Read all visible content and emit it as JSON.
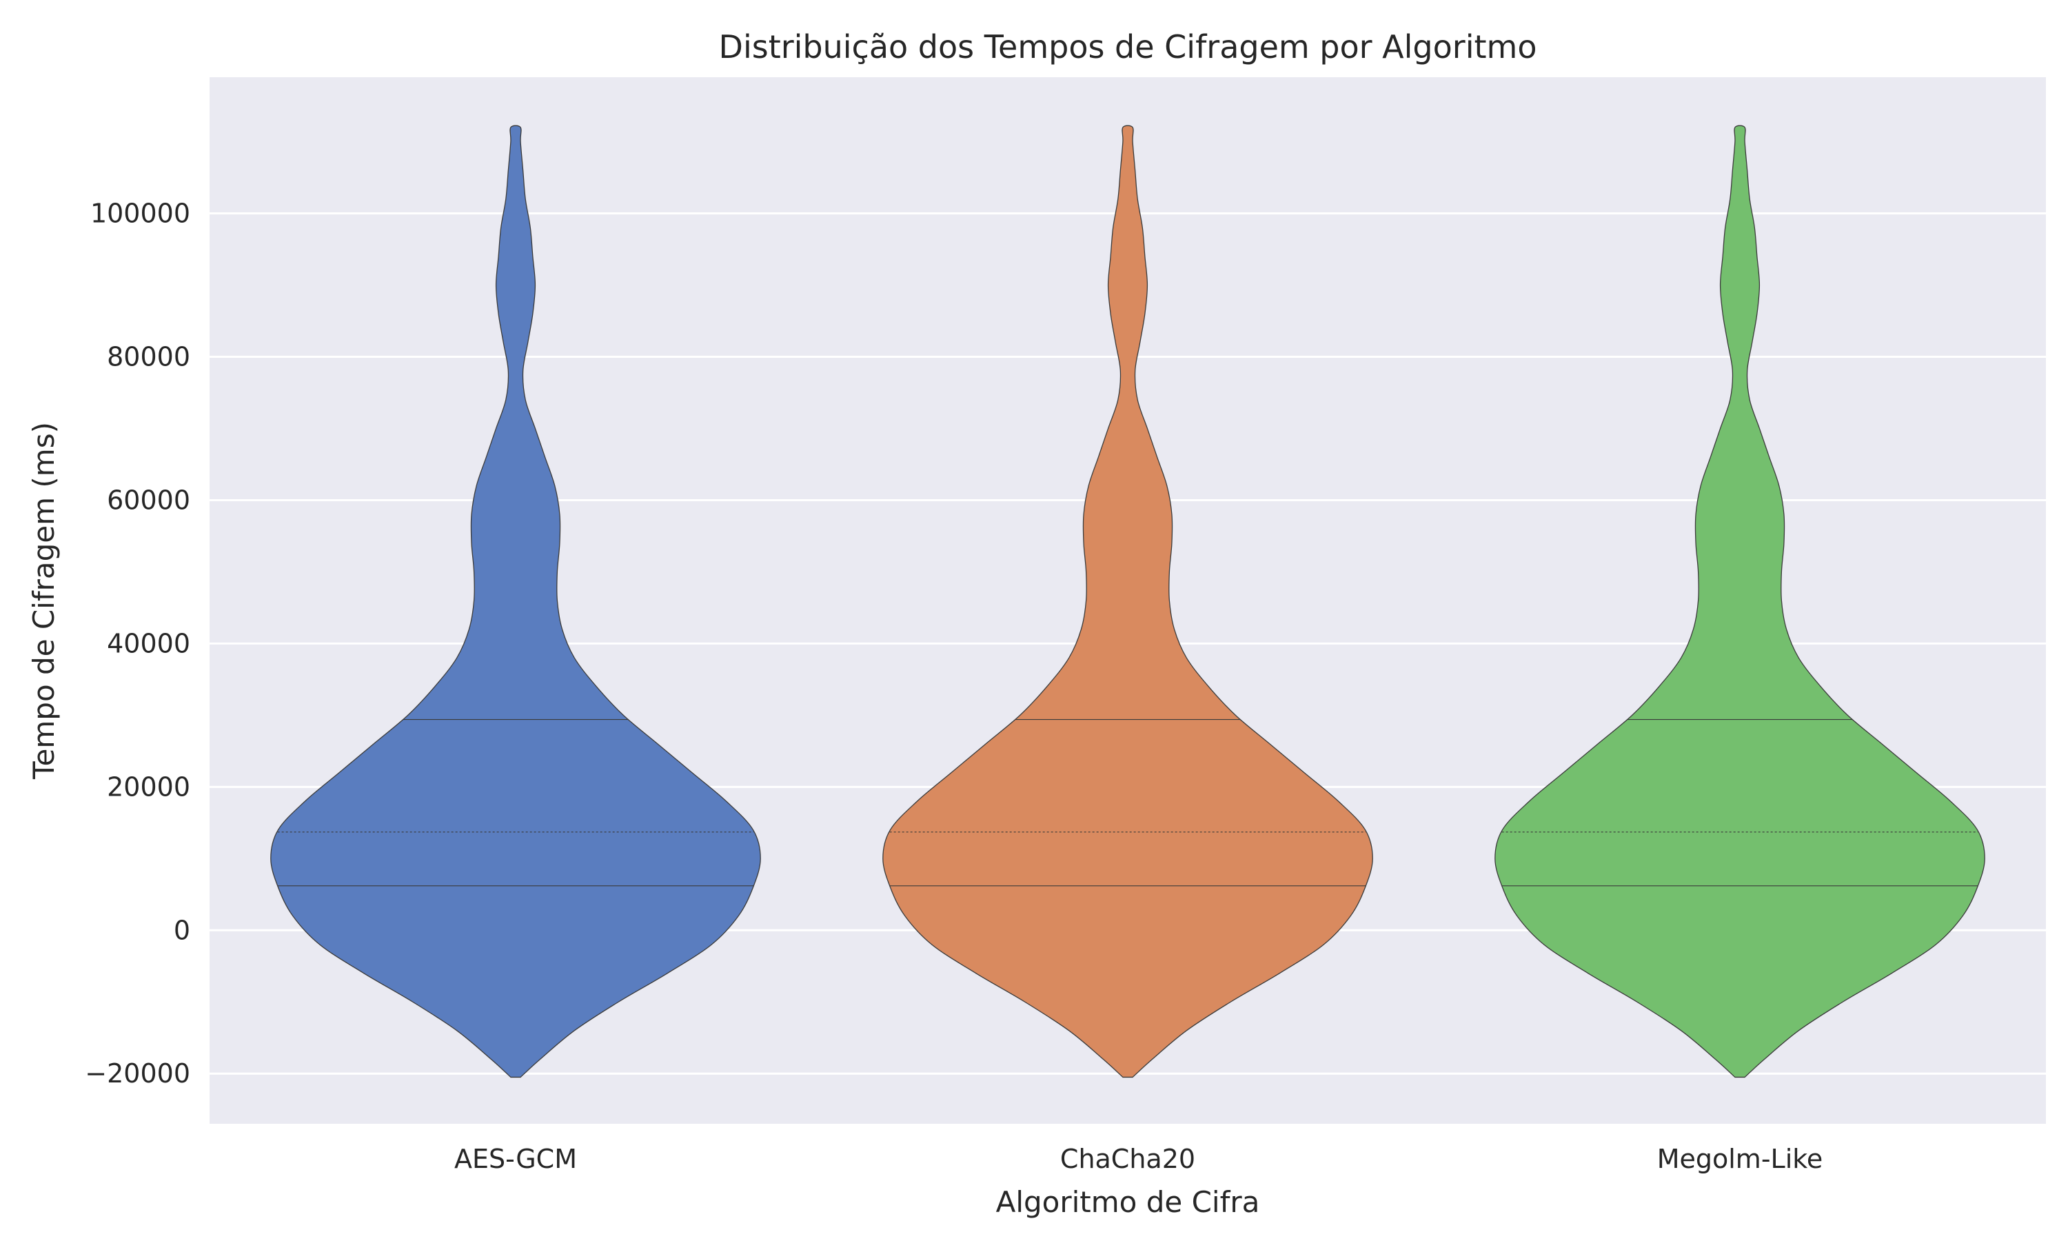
{
  "chart_data": {
    "type": "violin",
    "title": "Distribuição dos Tempos de Cifragem por Algoritmo",
    "xlabel": "Algoritmo de Cifra",
    "ylabel": "Tempo de Cifragem (ms)",
    "ylim": [
      -27000,
      119000
    ],
    "yticks": [
      -20000,
      0,
      20000,
      40000,
      60000,
      80000,
      100000
    ],
    "ytick_labels": [
      "−20000",
      "0",
      "20000",
      "40000",
      "60000",
      "80000",
      "100000"
    ],
    "grid": true,
    "categories": [
      "AES-GCM",
      "ChaCha20",
      "Megolm-Like"
    ],
    "colors": [
      "#5a7dbf",
      "#d98a5f",
      "#74bf6e"
    ],
    "series": [
      {
        "name": "AES-GCM",
        "min": -20500,
        "max": 112000,
        "quartiles": [
          6200,
          13700,
          29400
        ],
        "density_y": [
          -20500,
          -18000,
          -14000,
          -10000,
          -6000,
          -2000,
          2000,
          6000,
          10000,
          14000,
          18000,
          22000,
          26000,
          30000,
          34000,
          38000,
          42000,
          46000,
          50000,
          54000,
          58000,
          62000,
          66000,
          70000,
          74000,
          78000,
          82000,
          86000,
          90000,
          94000,
          98000,
          102000,
          106000,
          110000,
          112000
        ],
        "density_w": [
          0.02,
          0.1,
          0.24,
          0.42,
          0.62,
          0.8,
          0.91,
          0.97,
          1.0,
          0.97,
          0.86,
          0.72,
          0.58,
          0.44,
          0.33,
          0.24,
          0.19,
          0.17,
          0.17,
          0.18,
          0.18,
          0.16,
          0.12,
          0.08,
          0.04,
          0.03,
          0.05,
          0.07,
          0.08,
          0.07,
          0.06,
          0.04,
          0.03,
          0.02,
          0.02
        ]
      },
      {
        "name": "ChaCha20",
        "min": -20500,
        "max": 112000,
        "quartiles": [
          6200,
          13700,
          29400
        ],
        "density_y": [
          -20500,
          -18000,
          -14000,
          -10000,
          -6000,
          -2000,
          2000,
          6000,
          10000,
          14000,
          18000,
          22000,
          26000,
          30000,
          34000,
          38000,
          42000,
          46000,
          50000,
          54000,
          58000,
          62000,
          66000,
          70000,
          74000,
          78000,
          82000,
          86000,
          90000,
          94000,
          98000,
          102000,
          106000,
          110000,
          112000
        ],
        "density_w": [
          0.02,
          0.1,
          0.24,
          0.42,
          0.62,
          0.8,
          0.91,
          0.97,
          1.0,
          0.97,
          0.86,
          0.72,
          0.58,
          0.44,
          0.33,
          0.24,
          0.19,
          0.17,
          0.17,
          0.18,
          0.18,
          0.16,
          0.12,
          0.08,
          0.04,
          0.03,
          0.05,
          0.07,
          0.08,
          0.07,
          0.06,
          0.04,
          0.03,
          0.02,
          0.02
        ]
      },
      {
        "name": "Megolm-Like",
        "min": -20500,
        "max": 112000,
        "quartiles": [
          6200,
          13700,
          29400
        ],
        "density_y": [
          -20500,
          -18000,
          -14000,
          -10000,
          -6000,
          -2000,
          2000,
          6000,
          10000,
          14000,
          18000,
          22000,
          26000,
          30000,
          34000,
          38000,
          42000,
          46000,
          50000,
          54000,
          58000,
          62000,
          66000,
          70000,
          74000,
          78000,
          82000,
          86000,
          90000,
          94000,
          98000,
          102000,
          106000,
          110000,
          112000
        ],
        "density_w": [
          0.02,
          0.1,
          0.24,
          0.42,
          0.62,
          0.8,
          0.91,
          0.97,
          1.0,
          0.97,
          0.86,
          0.72,
          0.58,
          0.44,
          0.33,
          0.24,
          0.19,
          0.17,
          0.17,
          0.18,
          0.18,
          0.16,
          0.12,
          0.08,
          0.04,
          0.03,
          0.05,
          0.07,
          0.08,
          0.07,
          0.06,
          0.04,
          0.03,
          0.02,
          0.02
        ]
      }
    ]
  }
}
